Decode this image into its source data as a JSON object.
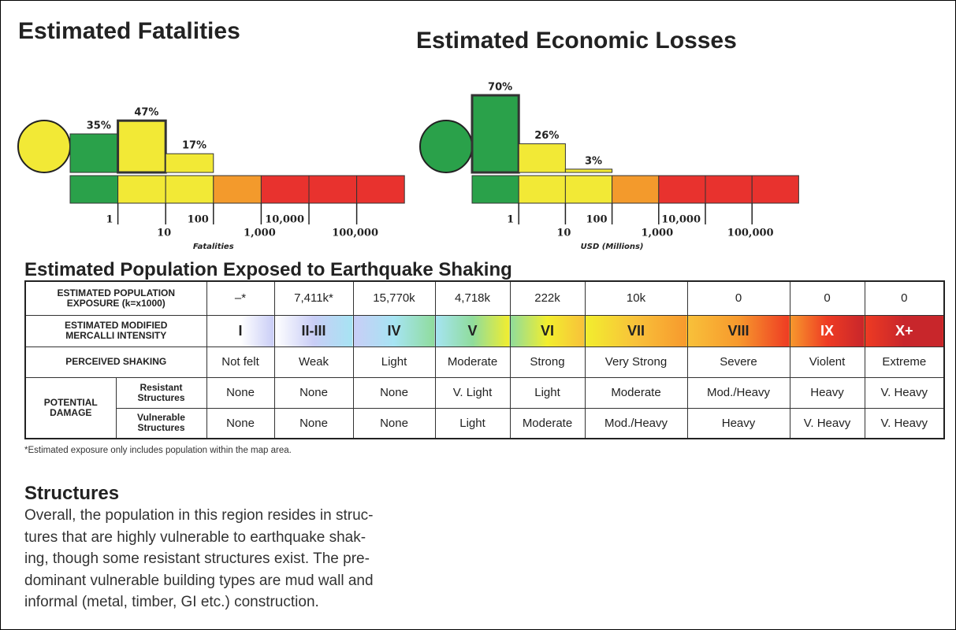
{
  "chart_data": [
    {
      "type": "bar",
      "title": "Estimated Fatalities",
      "values": [
        35,
        47,
        17
      ],
      "value_labels": [
        "35%",
        "47%",
        "17%"
      ],
      "colors": [
        "#2aa14a",
        "#f2e936",
        "#f2e936"
      ],
      "highlight": 1,
      "alert_color": "#f2e936",
      "scale_colors": [
        "#2aa14a",
        "#f2e936",
        "#f2e936",
        "#f39a2c",
        "#e8322e",
        "#e8322e",
        "#e8322e"
      ],
      "log_scale": true,
      "xticks": [
        1,
        10,
        100,
        {
          "value": 1000,
          "label": "1,000"
        },
        {
          "value": 10000,
          "label": "10,000"
        },
        {
          "value": 100000,
          "label": "100,000"
        }
      ],
      "xlabel": "Fatalities"
    },
    {
      "type": "bar",
      "title": "Estimated Economic Losses",
      "values": [
        70,
        26,
        3
      ],
      "value_labels": [
        "70%",
        "26%",
        "3%"
      ],
      "colors": [
        "#2aa14a",
        "#f2e936",
        "#f2e936"
      ],
      "highlight": 0,
      "alert_color": "#2aa14a",
      "scale_colors": [
        "#2aa14a",
        "#f2e936",
        "#f2e936",
        "#f39a2c",
        "#e8322e",
        "#e8322e",
        "#e8322e"
      ],
      "log_scale": true,
      "xticks": [
        1,
        10,
        100,
        {
          "value": 1000,
          "label": "1,000"
        },
        {
          "value": 10000,
          "label": "10,000"
        },
        {
          "value": 100000,
          "label": "100,000"
        }
      ],
      "xlabel": "USD (Millions)"
    }
  ],
  "section_title": "Estimated Population Exposed to Earthquake Shaking",
  "table": {
    "exposure": {
      "label": "ESTIMATED POPULATION\nEXPOSURE (k=x1000)",
      "cells": [
        "–*",
        "7,411k*",
        "15,770k",
        "4,718k",
        "222k",
        "10k",
        "0",
        "0",
        "0"
      ]
    },
    "intensity": {
      "label": "ESTIMATED MODIFIED\nMERCALLI INTENSITY",
      "cells": [
        "I",
        "II-III",
        "IV",
        "V",
        "VI",
        "VII",
        "VIII",
        "IX",
        "X+"
      ],
      "colors": [
        "#ffffff",
        "#c9cdf6",
        "#a6e4f3",
        "#8fdc9c",
        "#f2ee2e",
        "#f8c13a",
        "#f7992d",
        "#ee3b23",
        "#c8262b"
      ]
    },
    "shaking": {
      "label": "PERCEIVED SHAKING",
      "cells": [
        "Not felt",
        "Weak",
        "Light",
        "Moderate",
        "Strong",
        "Very Strong",
        "Severe",
        "Violent",
        "Extreme"
      ]
    },
    "damage": {
      "label": "POTENTIAL\nDAMAGE",
      "resistant": {
        "label": "Resistant\nStructures",
        "cells": [
          "None",
          "None",
          "None",
          "V. Light",
          "Light",
          "Moderate",
          "Mod./Heavy",
          "Heavy",
          "V. Heavy"
        ]
      },
      "vulnerable": {
        "label": "Vulnerable\nStructures",
        "cells": [
          "None",
          "None",
          "None",
          "Light",
          "Moderate",
          "Mod./Heavy",
          "Heavy",
          "V. Heavy",
          "V. Heavy"
        ]
      }
    }
  },
  "footnote": "*Estimated exposure only includes population within the map area.",
  "structures": {
    "title": "Structures",
    "lines": [
      "Overall, the population in this region resides in struc-",
      "tures that are highly vulnerable to earthquake shak-",
      "ing, though some resistant structures exist. The pre-",
      "dominant vulnerable building types are mud wall and",
      "informal (metal, timber, GI etc.) construction."
    ]
  }
}
